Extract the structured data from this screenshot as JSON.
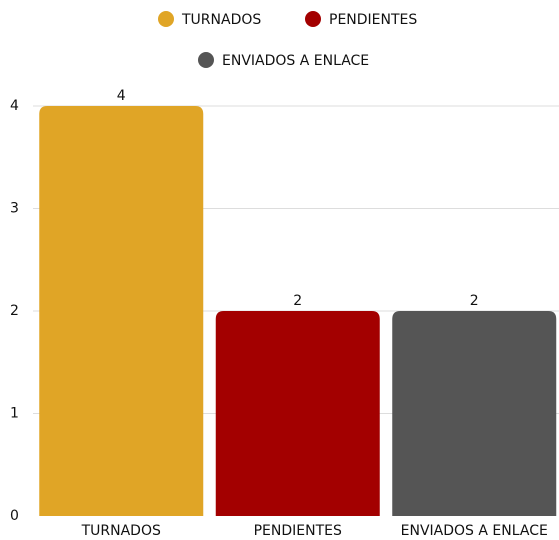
{
  "chart_data": {
    "type": "bar",
    "categories": [
      "TURNADOS",
      "PENDIENTES",
      "ENVIADOS A ENLACE"
    ],
    "values": [
      4,
      2,
      2
    ],
    "colors": [
      "#e0a526",
      "#a30000",
      "#555555"
    ],
    "ylim": [
      0,
      4
    ],
    "yticks": [
      0,
      1,
      2,
      3,
      4
    ],
    "grid": true,
    "legend": "top"
  }
}
